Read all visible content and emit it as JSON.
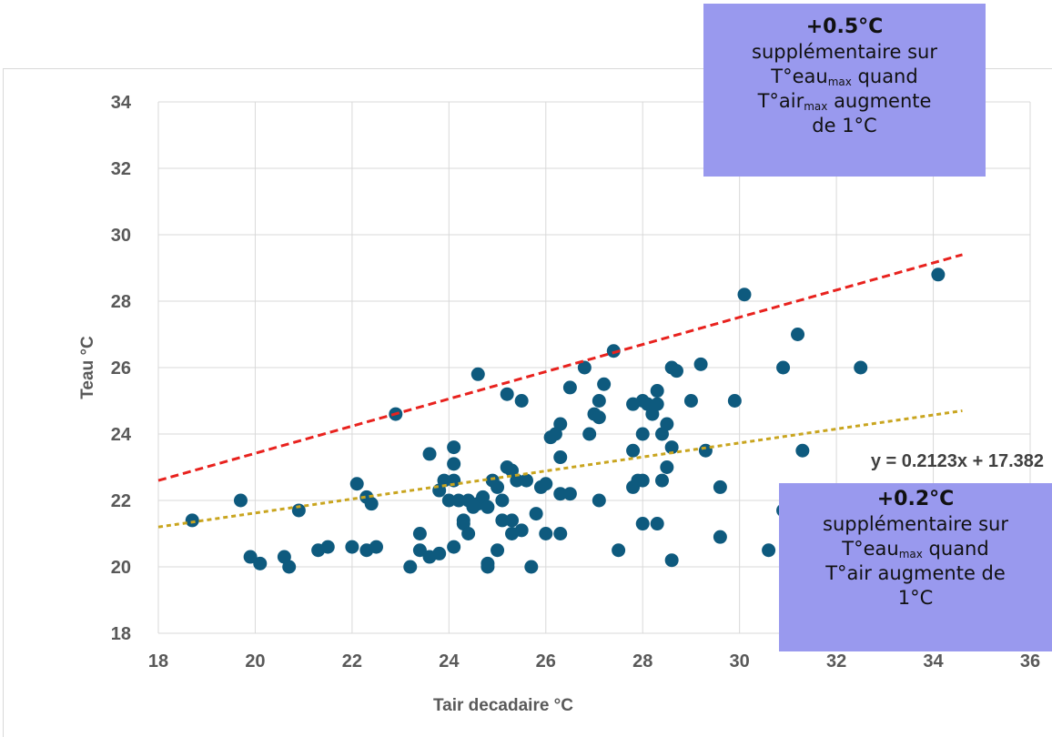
{
  "chart_data": {
    "type": "scatter",
    "xlabel": "Tair decadaire  °C",
    "ylabel": "Teau °C",
    "xlim": [
      18,
      36
    ],
    "ylim": [
      18,
      34
    ],
    "xticks": [
      "18",
      "20",
      "22",
      "24",
      "26",
      "28",
      "30",
      "32",
      "34",
      "36"
    ],
    "yticks": [
      "18",
      "20",
      "22",
      "24",
      "26",
      "28",
      "30",
      "32",
      "34"
    ],
    "grid": true,
    "colors": {
      "points": "#0e5a7e",
      "max_line": "#e8221e",
      "trend_line": "#c9a51f",
      "annotation_bg": "#9999ee"
    },
    "series": [
      {
        "kind": "points",
        "points": [
          [
            18.7,
            21.4
          ],
          [
            19.7,
            22.0
          ],
          [
            19.9,
            20.3
          ],
          [
            20.1,
            20.1
          ],
          [
            20.6,
            20.3
          ],
          [
            20.7,
            20.0
          ],
          [
            20.9,
            21.7
          ],
          [
            21.3,
            20.5
          ],
          [
            21.5,
            20.6
          ],
          [
            22.0,
            20.6
          ],
          [
            22.1,
            22.5
          ],
          [
            22.3,
            20.5
          ],
          [
            22.3,
            22.1
          ],
          [
            22.4,
            21.9
          ],
          [
            22.5,
            20.6
          ],
          [
            22.9,
            24.6
          ],
          [
            23.2,
            20.0
          ],
          [
            23.4,
            21.0
          ],
          [
            23.4,
            20.5
          ],
          [
            23.6,
            23.4
          ],
          [
            23.6,
            20.3
          ],
          [
            23.8,
            22.3
          ],
          [
            23.8,
            20.4
          ],
          [
            23.9,
            22.6
          ],
          [
            24.0,
            22.0
          ],
          [
            24.1,
            23.6
          ],
          [
            24.1,
            23.1
          ],
          [
            24.1,
            22.6
          ],
          [
            24.1,
            20.6
          ],
          [
            24.2,
            22.0
          ],
          [
            24.3,
            21.4
          ],
          [
            24.3,
            21.3
          ],
          [
            24.4,
            21.0
          ],
          [
            24.4,
            22.0
          ],
          [
            24.5,
            21.8
          ],
          [
            24.6,
            21.9
          ],
          [
            24.6,
            25.8
          ],
          [
            24.7,
            22.1
          ],
          [
            24.8,
            20.0
          ],
          [
            24.8,
            20.1
          ],
          [
            24.8,
            21.8
          ],
          [
            24.9,
            22.6
          ],
          [
            25.0,
            22.4
          ],
          [
            25.0,
            20.5
          ],
          [
            25.1,
            21.4
          ],
          [
            25.1,
            22.0
          ],
          [
            25.2,
            23.0
          ],
          [
            25.2,
            25.2
          ],
          [
            25.3,
            22.9
          ],
          [
            25.3,
            21.4
          ],
          [
            25.3,
            21.0
          ],
          [
            25.4,
            22.6
          ],
          [
            25.5,
            25.0
          ],
          [
            25.5,
            21.1
          ],
          [
            25.6,
            22.6
          ],
          [
            25.7,
            20.0
          ],
          [
            25.8,
            21.6
          ],
          [
            25.9,
            22.4
          ],
          [
            26.0,
            22.5
          ],
          [
            26.0,
            21.0
          ],
          [
            26.1,
            23.9
          ],
          [
            26.2,
            24.0
          ],
          [
            26.3,
            24.3
          ],
          [
            26.3,
            23.3
          ],
          [
            26.3,
            22.2
          ],
          [
            26.3,
            21.0
          ],
          [
            26.5,
            25.4
          ],
          [
            26.5,
            22.2
          ],
          [
            26.8,
            26.0
          ],
          [
            26.9,
            24.0
          ],
          [
            27.0,
            24.6
          ],
          [
            27.1,
            25.0
          ],
          [
            27.1,
            22.0
          ],
          [
            27.1,
            24.5
          ],
          [
            27.2,
            25.5
          ],
          [
            27.4,
            26.5
          ],
          [
            27.5,
            20.5
          ],
          [
            27.8,
            23.5
          ],
          [
            27.8,
            24.9
          ],
          [
            27.8,
            22.4
          ],
          [
            27.9,
            22.6
          ],
          [
            28.0,
            24.0
          ],
          [
            28.0,
            21.3
          ],
          [
            28.0,
            25.0
          ],
          [
            28.0,
            22.6
          ],
          [
            28.1,
            24.9
          ],
          [
            28.2,
            24.6
          ],
          [
            28.3,
            25.3
          ],
          [
            28.3,
            24.9
          ],
          [
            28.3,
            21.3
          ],
          [
            28.4,
            24.0
          ],
          [
            28.4,
            22.6
          ],
          [
            28.5,
            24.3
          ],
          [
            28.5,
            23.0
          ],
          [
            28.6,
            26.0
          ],
          [
            28.6,
            23.6
          ],
          [
            28.6,
            20.2
          ],
          [
            28.7,
            25.9
          ],
          [
            29.0,
            25.0
          ],
          [
            29.2,
            26.1
          ],
          [
            29.3,
            23.5
          ],
          [
            29.6,
            22.4
          ],
          [
            29.6,
            20.9
          ],
          [
            29.9,
            25.0
          ],
          [
            30.1,
            28.2
          ],
          [
            30.6,
            20.5
          ],
          [
            30.9,
            26.0
          ],
          [
            30.9,
            21.7
          ],
          [
            31.2,
            27.0
          ],
          [
            31.3,
            23.5
          ],
          [
            32.5,
            26.0
          ],
          [
            34.1,
            28.8
          ]
        ]
      },
      {
        "kind": "max_line",
        "style": "dashed",
        "x": [
          18,
          34.6
        ],
        "y": [
          22.6,
          29.4
        ]
      },
      {
        "kind": "trend_line",
        "style": "dashed",
        "x": [
          18,
          34.6
        ],
        "y": [
          21.2,
          24.7
        ]
      }
    ],
    "equation_label": "y = 0.2123x + 17.382"
  },
  "annotations": {
    "top": {
      "header": "+0.5°C",
      "line1": "supplémentaire sur",
      "line2_prefix": "T°eau",
      "line2_sub": "max",
      "line2_suffix": " quand",
      "line3_prefix": "T°air",
      "line3_sub": "max",
      "line3_suffix": " augmente",
      "line4": "de 1°C"
    },
    "bottom": {
      "header": "+0.2°C",
      "line1": "supplémentaire sur",
      "line2_prefix": "T°eau",
      "line2_sub": "max",
      "line2_suffix": " quand",
      "line3": "T°air augmente de",
      "line4": "1°C"
    }
  }
}
